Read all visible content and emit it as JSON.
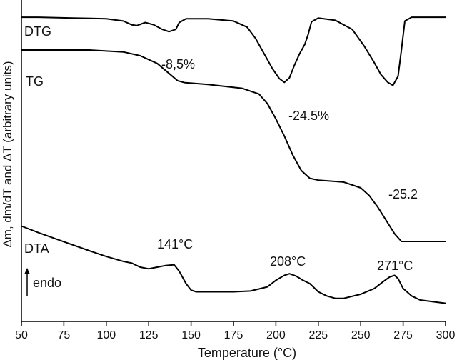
{
  "chart_data": {
    "type": "line",
    "title": "",
    "xlabel": "Temperature (°C)",
    "ylabel": "Δm, dm/dT and ΔT (arbitrary units)",
    "xlim": [
      50,
      300
    ],
    "x_ticks": [
      "50",
      "75",
      "100",
      "125",
      "150",
      "175",
      "200",
      "225",
      "250",
      "275",
      "300"
    ],
    "y_ticks": [],
    "grid": false,
    "legend": "none",
    "series": [
      {
        "name": "DTG",
        "x": [
          50,
          60,
          80,
          100,
          110,
          115,
          118,
          123,
          128,
          133,
          137,
          141,
          143,
          147,
          160,
          175,
          183,
          188,
          193,
          198,
          202,
          205,
          208,
          211,
          214,
          217,
          219,
          221,
          225,
          235,
          245,
          252,
          258,
          262,
          266,
          269,
          272,
          274,
          276,
          280,
          300
        ],
        "y": [
          0.98,
          0.98,
          0.97,
          0.96,
          0.93,
          0.88,
          0.87,
          0.91,
          0.88,
          0.82,
          0.79,
          0.82,
          0.91,
          0.96,
          0.96,
          0.93,
          0.85,
          0.7,
          0.5,
          0.3,
          0.17,
          0.12,
          0.18,
          0.35,
          0.5,
          0.62,
          0.75,
          0.92,
          0.97,
          0.94,
          0.82,
          0.6,
          0.38,
          0.22,
          0.12,
          0.08,
          0.2,
          0.55,
          0.93,
          0.98,
          0.98
        ]
      },
      {
        "name": "TG",
        "x": [
          50,
          90,
          110,
          120,
          130,
          138,
          142,
          146,
          160,
          180,
          190,
          195,
          200,
          205,
          210,
          215,
          220,
          225,
          240,
          250,
          255,
          260,
          265,
          270,
          274,
          280,
          300
        ],
        "y": [
          1.0,
          1.0,
          0.99,
          0.97,
          0.93,
          0.87,
          0.84,
          0.83,
          0.82,
          0.8,
          0.77,
          0.72,
          0.64,
          0.55,
          0.45,
          0.37,
          0.33,
          0.32,
          0.31,
          0.28,
          0.24,
          0.18,
          0.11,
          0.04,
          0.0,
          0.0,
          0.0
        ]
      },
      {
        "name": "DTA",
        "x": [
          50,
          60,
          75,
          90,
          100,
          110,
          115,
          120,
          125,
          130,
          135,
          140,
          143,
          147,
          150,
          153,
          160,
          175,
          185,
          195,
          200,
          205,
          208,
          212,
          216,
          220,
          225,
          230,
          235,
          240,
          250,
          258,
          263,
          267,
          270,
          272,
          275,
          280,
          285,
          300
        ],
        "y": [
          0.9,
          0.82,
          0.71,
          0.6,
          0.53,
          0.47,
          0.45,
          0.4,
          0.38,
          0.4,
          0.42,
          0.43,
          0.35,
          0.2,
          0.12,
          0.1,
          0.1,
          0.1,
          0.11,
          0.16,
          0.24,
          0.3,
          0.32,
          0.29,
          0.24,
          0.2,
          0.1,
          0.05,
          0.02,
          0.02,
          0.07,
          0.14,
          0.22,
          0.28,
          0.3,
          0.26,
          0.14,
          0.05,
          0.0,
          -0.04
        ]
      }
    ],
    "annotations": [
      "-8,5%",
      "-24.5%",
      "-25.2",
      "141°C",
      "208°C",
      "271°C",
      "endo"
    ]
  }
}
